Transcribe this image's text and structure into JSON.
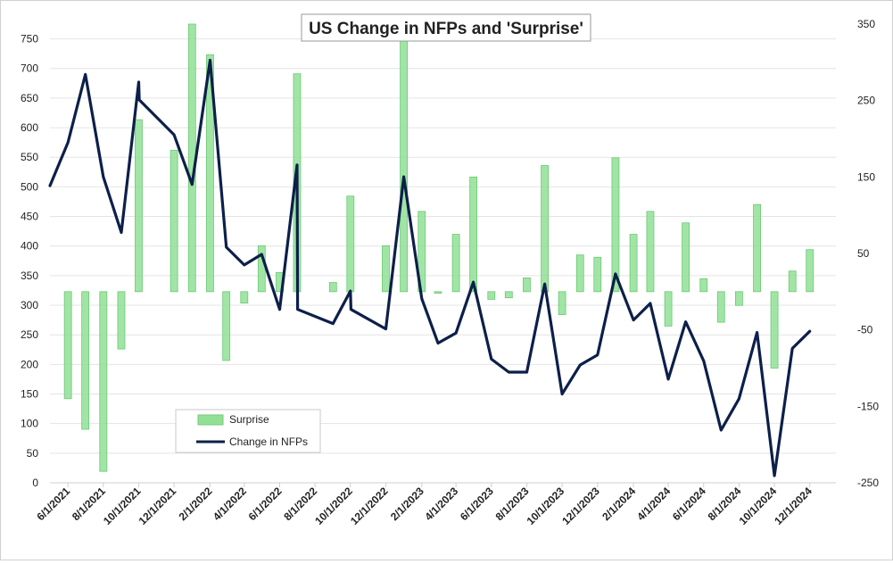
{
  "chart_data": {
    "type": "bar+line",
    "title": "US Change in NFPs and 'Surprise'",
    "grid": "horizontal",
    "legend_placement": "lower-left",
    "x_tick_labels": [
      "6/1/2021",
      "8/1/2021",
      "10/1/2021",
      "12/1/2021",
      "2/1/2022",
      "4/1/2022",
      "6/1/2022",
      "8/1/2022",
      "10/1/2022",
      "12/1/2022",
      "2/1/2023",
      "4/1/2023",
      "6/1/2023",
      "8/1/2023",
      "10/1/2023",
      "12/1/2023",
      "2/1/2024",
      "4/1/2024",
      "6/1/2024",
      "8/1/2024",
      "10/1/2024",
      "12/1/2024"
    ],
    "y_left": {
      "ticks": [
        0,
        50,
        100,
        150,
        200,
        250,
        300,
        350,
        400,
        450,
        500,
        550,
        600,
        650,
        700,
        750
      ],
      "ylim": [
        0,
        775
      ]
    },
    "y_right": {
      "ticks": [
        -250,
        -150,
        -50,
        50,
        150,
        250,
        350
      ],
      "ylim": [
        -250,
        350
      ]
    },
    "series": [
      {
        "name": "Surprise",
        "type": "bar",
        "axis": "right",
        "color": "#90e096",
        "points": [
          {
            "x": "6/1/2021",
            "y": -140
          },
          {
            "x": "7/1/2021",
            "y": -180
          },
          {
            "x": "8/1/2021",
            "y": -235
          },
          {
            "x": "9/1/2021",
            "y": -75
          },
          {
            "x": "10/1/2021",
            "y": 225
          },
          {
            "x": "12/1/2021",
            "y": 185
          },
          {
            "x": "1/1/2022",
            "y": 350
          },
          {
            "x": "2/1/2022",
            "y": 310
          },
          {
            "x": "3/1/2022",
            "y": -90
          },
          {
            "x": "4/1/2022",
            "y": -15
          },
          {
            "x": "5/1/2022",
            "y": 60
          },
          {
            "x": "6/1/2022",
            "y": 25
          },
          {
            "x": "7/1/2022",
            "y": 285
          },
          {
            "x": "9/1/2022",
            "y": 12
          },
          {
            "x": "10/1/2022",
            "y": 125
          },
          {
            "x": "12/1/2022",
            "y": 60
          },
          {
            "x": "1/1/2023",
            "y": 330
          },
          {
            "x": "2/1/2023",
            "y": 105
          },
          {
            "x": "3/1/2023",
            "y": -2
          },
          {
            "x": "4/1/2023",
            "y": 75
          },
          {
            "x": "5/1/2023",
            "y": 150
          },
          {
            "x": "6/1/2023",
            "y": -10
          },
          {
            "x": "7/1/2023",
            "y": -8
          },
          {
            "x": "8/1/2023",
            "y": 18
          },
          {
            "x": "9/1/2023",
            "y": 165
          },
          {
            "x": "10/1/2023",
            "y": -30
          },
          {
            "x": "11/1/2023",
            "y": 48
          },
          {
            "x": "12/1/2023",
            "y": 45
          },
          {
            "x": "1/1/2024",
            "y": 175
          },
          {
            "x": "2/1/2024",
            "y": 75
          },
          {
            "x": "3/1/2024",
            "y": 105
          },
          {
            "x": "4/1/2024",
            "y": -45
          },
          {
            "x": "5/1/2024",
            "y": 90
          },
          {
            "x": "6/1/2024",
            "y": 17
          },
          {
            "x": "7/1/2024",
            "y": -40
          },
          {
            "x": "8/1/2024",
            "y": -18
          },
          {
            "x": "9/1/2024",
            "y": 114
          },
          {
            "x": "10/1/2024",
            "y": -100
          },
          {
            "x": "11/1/2024",
            "y": 27
          },
          {
            "x": "12/1/2024",
            "y": 55
          }
        ]
      },
      {
        "name": "Change in NFPs",
        "type": "line",
        "axis": "left",
        "color": "#0d1f4a",
        "points": [
          {
            "x": "5/1/2021",
            "y": 502
          },
          {
            "x": "6/1/2021",
            "y": 575
          },
          {
            "x": "7/1/2021",
            "y": 690
          },
          {
            "x": "8/1/2021",
            "y": 517
          },
          {
            "x": "9/1/2021",
            "y": 423
          },
          {
            "x": "10/1/2021",
            "y": 677
          },
          {
            "x": "10/2/2021",
            "y": 647
          },
          {
            "x": "12/1/2021",
            "y": 588
          },
          {
            "x": "1/1/2022",
            "y": 504
          },
          {
            "x": "2/1/2022",
            "y": 714
          },
          {
            "x": "3/1/2022",
            "y": 398
          },
          {
            "x": "4/1/2022",
            "y": 368
          },
          {
            "x": "5/1/2022",
            "y": 386
          },
          {
            "x": "6/1/2022",
            "y": 293
          },
          {
            "x": "7/1/2022",
            "y": 537
          },
          {
            "x": "7/2/2022",
            "y": 293
          },
          {
            "x": "9/1/2022",
            "y": 269
          },
          {
            "x": "10/1/2022",
            "y": 324
          },
          {
            "x": "10/2/2022",
            "y": 293
          },
          {
            "x": "12/1/2022",
            "y": 260
          },
          {
            "x": "1/1/2023",
            "y": 517
          },
          {
            "x": "2/1/2023",
            "y": 311
          },
          {
            "x": "3/1/2023",
            "y": 236
          },
          {
            "x": "4/1/2023",
            "y": 253
          },
          {
            "x": "5/1/2023",
            "y": 339
          },
          {
            "x": "6/1/2023",
            "y": 209
          },
          {
            "x": "7/1/2023",
            "y": 187
          },
          {
            "x": "8/1/2023",
            "y": 187
          },
          {
            "x": "9/1/2023",
            "y": 336
          },
          {
            "x": "10/1/2023",
            "y": 150
          },
          {
            "x": "11/1/2023",
            "y": 199
          },
          {
            "x": "12/1/2023",
            "y": 216
          },
          {
            "x": "1/1/2024",
            "y": 353
          },
          {
            "x": "2/1/2024",
            "y": 275
          },
          {
            "x": "3/1/2024",
            "y": 303
          },
          {
            "x": "4/1/2024",
            "y": 175
          },
          {
            "x": "5/1/2024",
            "y": 272
          },
          {
            "x": "6/1/2024",
            "y": 206
          },
          {
            "x": "7/1/2024",
            "y": 89
          },
          {
            "x": "8/1/2024",
            "y": 142
          },
          {
            "x": "9/1/2024",
            "y": 254
          },
          {
            "x": "10/1/2024",
            "y": 12
          },
          {
            "x": "11/1/2024",
            "y": 227
          },
          {
            "x": "12/1/2024",
            "y": 256
          }
        ]
      }
    ]
  }
}
